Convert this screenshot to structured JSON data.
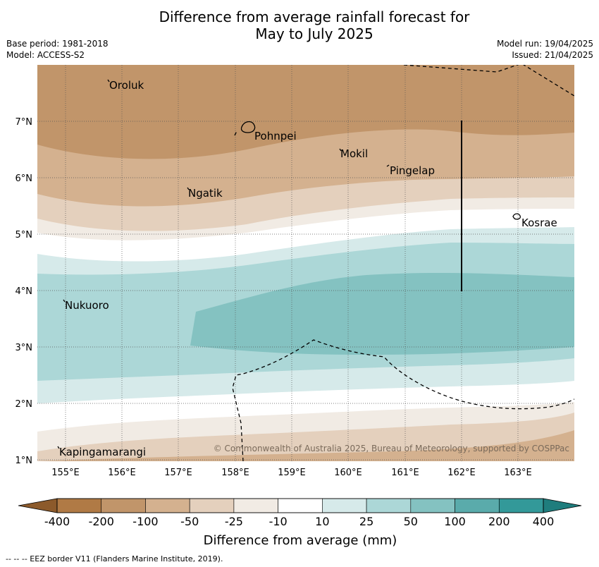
{
  "title": {
    "line1": "Difference from average rainfall forecast for",
    "line2": "May to July 2025"
  },
  "meta": {
    "base_period": "Base period: 1981-2018",
    "model": "Model: ACCESS-S2",
    "model_run": "Model run: 19/04/2025",
    "issued": "Issued: 21/04/2025"
  },
  "axes": {
    "lat_labels": [
      "1°N",
      "2°N",
      "3°N",
      "4°N",
      "5°N",
      "6°N",
      "7°N"
    ],
    "lon_labels": [
      "155°E",
      "156°E",
      "157°E",
      "158°E",
      "159°E",
      "160°E",
      "161°E",
      "162°E",
      "163°E"
    ]
  },
  "places": [
    {
      "name": "Oroluk"
    },
    {
      "name": "Pohnpei"
    },
    {
      "name": "Mokil"
    },
    {
      "name": "Pingelap"
    },
    {
      "name": "Ngatik"
    },
    {
      "name": "Kosrae"
    },
    {
      "name": "Nukuoro"
    },
    {
      "name": "Kapingamarangi"
    }
  ],
  "copyright": "© Commonwealth of Australia 2025, Bureau of Meteorology, supported by COSPPac",
  "colorbar": {
    "ticks": [
      "-400",
      "-200",
      "-100",
      "-50",
      "-25",
      "-10",
      "10",
      "25",
      "50",
      "100",
      "200",
      "400"
    ],
    "colors": [
      "#8c5a2b",
      "#b07a45",
      "#c1956a",
      "#d4b18f",
      "#e4d0bd",
      "#f1ebe4",
      "#ffffff",
      "#d6eaea",
      "#acd7d7",
      "#84c2c1",
      "#5aabab",
      "#339999",
      "#1f7d7d"
    ],
    "label": "Difference from average (mm)"
  },
  "footer_note": "--  --  -- EEZ border V11 (Flanders Marine Institute, 2019)."
}
